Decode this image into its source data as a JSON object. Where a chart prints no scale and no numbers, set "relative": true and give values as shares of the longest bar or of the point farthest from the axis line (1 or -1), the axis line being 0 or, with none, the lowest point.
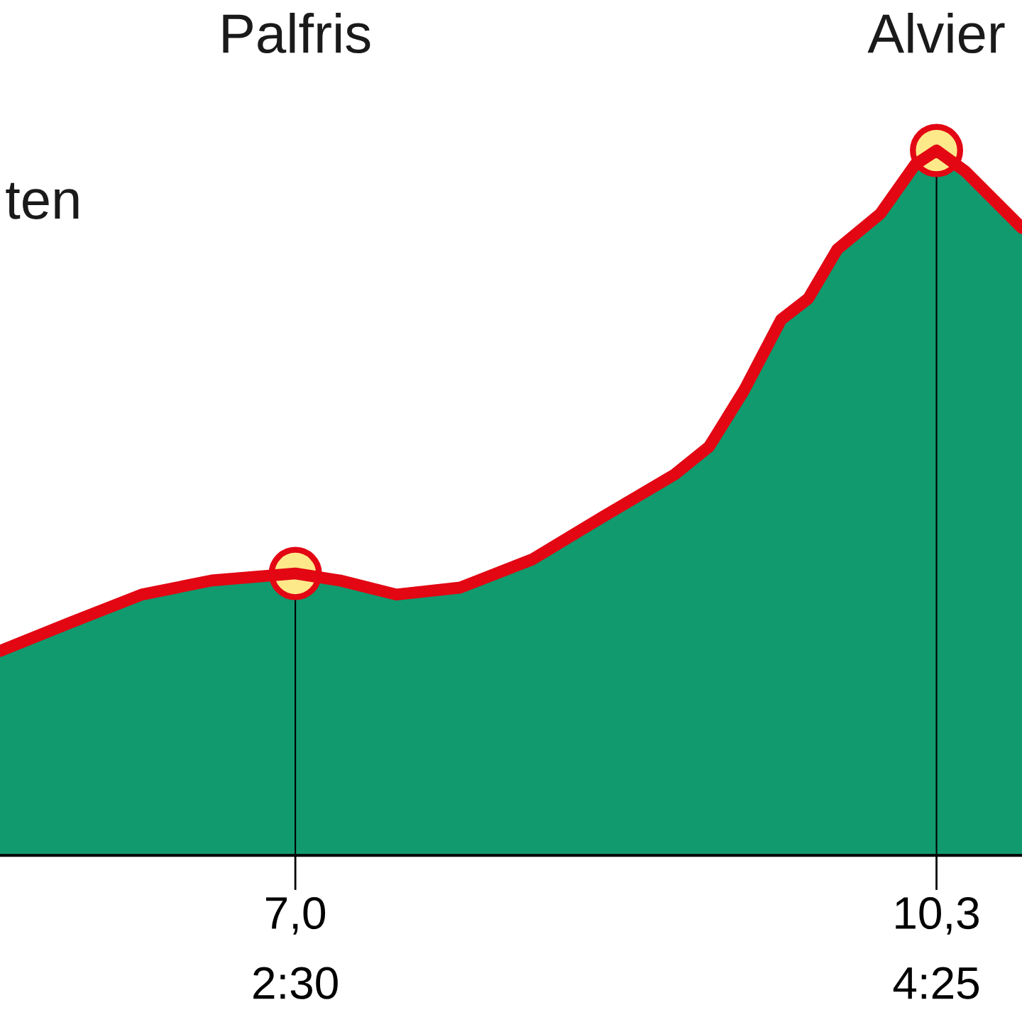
{
  "chart_data": {
    "type": "area",
    "relative": true,
    "x": [
      5.48,
      5.84,
      6.21,
      6.57,
      7.0,
      7.23,
      7.52,
      7.85,
      8.22,
      8.58,
      8.95,
      9.13,
      9.31,
      9.5,
      9.64,
      9.79,
      10.01,
      10.19,
      10.3,
      10.45,
      10.74
    ],
    "series": [
      {
        "color": "#109a6e",
        "x": [
          5.48,
          5.84,
          6.21,
          6.57,
          7.23,
          7.52,
          7.85,
          8.22,
          8.58,
          8.95,
          9.13,
          9.31,
          9.5,
          9.64,
          9.79,
          10.01,
          10.19,
          10.45,
          10.74
        ],
        "values": [
          0.29,
          0.33,
          0.37,
          0.39,
          0.39,
          0.37,
          0.38,
          0.42,
          0.48,
          0.54,
          0.58,
          0.66,
          0.76,
          0.79,
          0.86,
          0.91,
          0.98,
          0.97,
          0.89
        ]
      },
      {
        "type": "line",
        "color": "#e30613",
        "values": [
          0.29,
          0.33,
          0.37,
          0.39,
          0.4,
          0.39,
          0.37,
          0.38,
          0.42,
          0.48,
          0.54,
          0.58,
          0.66,
          0.76,
          0.79,
          0.86,
          0.91,
          0.98,
          1.0,
          0.97,
          0.89
        ]
      },
      {
        "type": "scatter",
        "color": "#fde98a",
        "marker": "circle",
        "x": [
          7.0,
          10.3
        ],
        "values": [
          0.4,
          1.0
        ]
      }
    ],
    "xlim": [
      5.48,
      10.74
    ],
    "xticks": [
      {
        "value": 7.0,
        "label": "7,0"
      },
      {
        "value": 10.3,
        "label": "10,3"
      }
    ],
    "ref_lines": [
      {
        "axis": "x",
        "value": 7.0,
        "color": "#000000"
      },
      {
        "axis": "x",
        "value": 10.3,
        "color": "#000000"
      }
    ],
    "annotations": [
      "ten",
      "Palfris",
      "Alvier",
      "2:30",
      "4:25"
    ],
    "grid": false,
    "legend": false,
    "tick_labels": "x"
  }
}
